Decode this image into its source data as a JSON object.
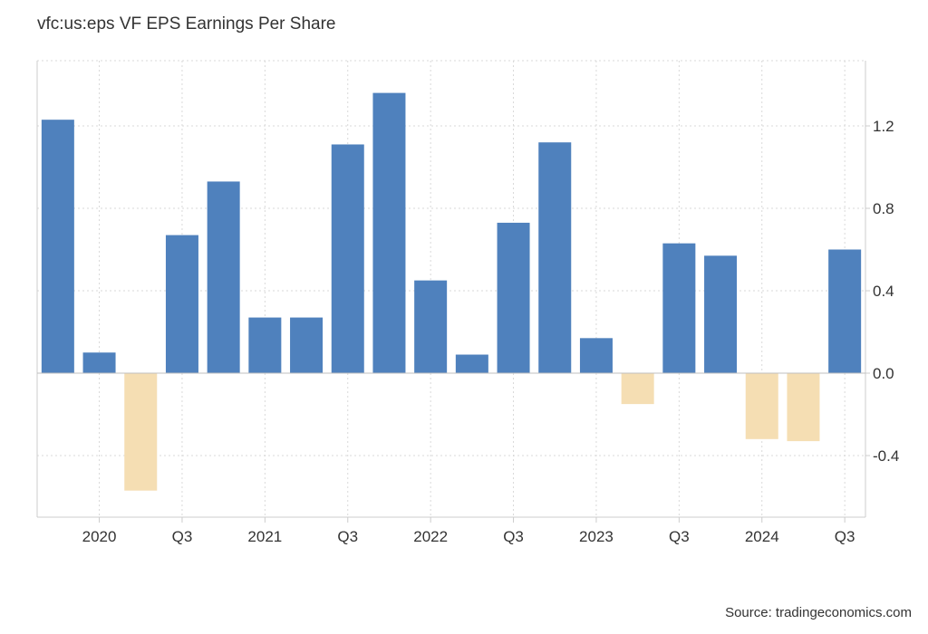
{
  "title": "vfc:us:eps VF EPS Earnings Per Share",
  "source": "Source: tradingeconomics.com",
  "chart_data": {
    "type": "bar",
    "title": "vfc:us:eps VF EPS Earnings Per Share",
    "xlabel": "",
    "ylabel": "",
    "ylim": [
      -0.7,
      1.5
    ],
    "y_ticks": [
      -0.4,
      0.0,
      0.4,
      0.8,
      1.2
    ],
    "y_tick_labels": [
      "-0.4",
      "0.0",
      "0.4",
      "0.8",
      "1.2"
    ],
    "x_tick_labels": [
      "2020",
      "Q3",
      "2021",
      "Q3",
      "2022",
      "Q3",
      "2023",
      "Q3",
      "2024",
      "Q3"
    ],
    "grid": true,
    "y_axis_side": "right",
    "positive_color": "#4f81bd",
    "negative_color": "#f5deb3",
    "categories": [
      "Q4 2019",
      "Q1 2020",
      "Q2 2020",
      "Q3 2020",
      "Q4 2020",
      "Q1 2021",
      "Q2 2021",
      "Q3 2021",
      "Q4 2021",
      "Q1 2022",
      "Q2 2022",
      "Q3 2022",
      "Q4 2022",
      "Q1 2023",
      "Q2 2023",
      "Q3 2023",
      "Q4 2023",
      "Q1 2024",
      "Q2 2024",
      "Q3 2024"
    ],
    "values": [
      1.23,
      0.1,
      -0.57,
      0.67,
      0.93,
      0.27,
      0.27,
      1.11,
      1.36,
      0.45,
      0.09,
      0.73,
      1.12,
      0.17,
      -0.15,
      0.63,
      0.57,
      -0.32,
      -0.33,
      0.6
    ]
  }
}
